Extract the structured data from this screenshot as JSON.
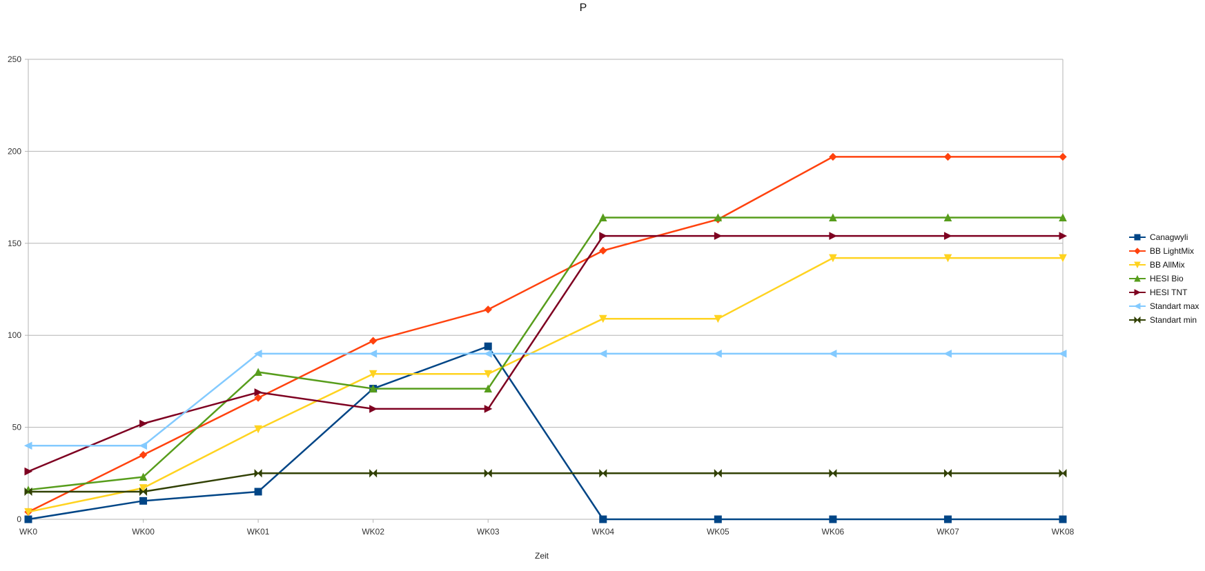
{
  "chart_data": {
    "type": "line",
    "title": "P",
    "xlabel": "Zeit",
    "ylabel": "",
    "categories": [
      "WK0",
      "WK00",
      "WK01",
      "WK02",
      "WK03",
      "WK04",
      "WK05",
      "WK06",
      "WK07",
      "WK08"
    ],
    "ylim": [
      0,
      250
    ],
    "yticks": [
      0,
      50,
      100,
      150,
      200,
      250
    ],
    "grid": true,
    "legend_position": "right",
    "series": [
      {
        "name": "Canagwyli",
        "color": "#004586",
        "marker": "square",
        "values": [
          0,
          10,
          15,
          71,
          94,
          0,
          0,
          0,
          0,
          0
        ]
      },
      {
        "name": "BB LightMix",
        "color": "#ff420e",
        "marker": "diamond",
        "values": [
          4,
          35,
          66,
          97,
          114,
          146,
          163,
          197,
          197,
          197
        ]
      },
      {
        "name": "BB AllMix",
        "color": "#ffd320",
        "marker": "triangle-down",
        "values": [
          4,
          17,
          49,
          79,
          79,
          109,
          109,
          142,
          142,
          142
        ]
      },
      {
        "name": "HESI Bio",
        "color": "#579d1c",
        "marker": "triangle-up",
        "values": [
          16,
          23,
          80,
          71,
          71,
          164,
          164,
          164,
          164,
          164
        ]
      },
      {
        "name": "HESI TNT",
        "color": "#7e0021",
        "marker": "triangle-right",
        "values": [
          26,
          52,
          69,
          60,
          60,
          154,
          154,
          154,
          154,
          154
        ]
      },
      {
        "name": "Standart max",
        "color": "#83caff",
        "marker": "triangle-left",
        "values": [
          40,
          40,
          90,
          90,
          90,
          90,
          90,
          90,
          90,
          90
        ]
      },
      {
        "name": "Standart min",
        "color": "#314004",
        "marker": "bowtie",
        "values": [
          15,
          15,
          25,
          25,
          25,
          25,
          25,
          25,
          25,
          25
        ]
      }
    ]
  }
}
